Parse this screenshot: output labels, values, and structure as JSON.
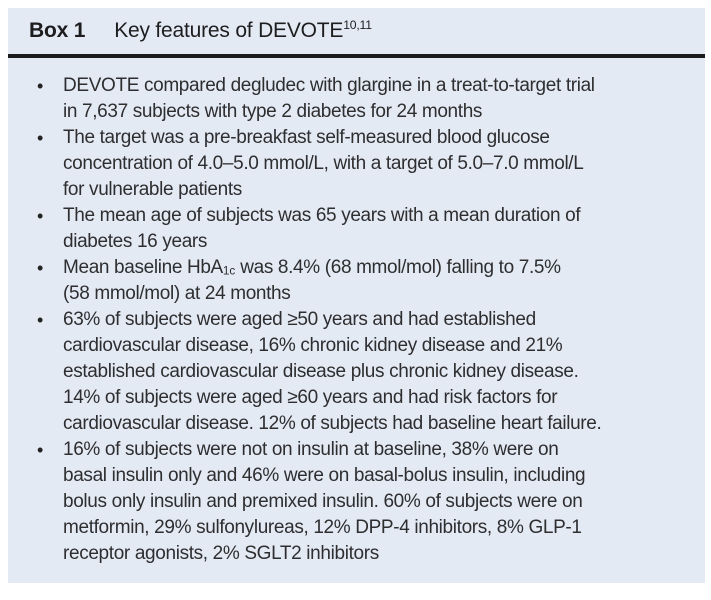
{
  "box": {
    "background": "#e4eaf4",
    "rule_color": "#1b1b1b",
    "bullet_glyph": "•",
    "header": {
      "label": "Box 1",
      "title": "Key features of DEVOTE",
      "reference_superscript": "10,11"
    },
    "bullets": [
      {
        "text": "DEVOTE compared degludec with glargine in a treat-to-target trial\nin 7,637 subjects with type 2 diabetes for 24 months"
      },
      {
        "text": "The target was a pre-breakfast self-measured blood glucose\nconcentration of 4.0–5.0 mmol/L, with a target of 5.0–7.0 mmol/L\nfor vulnerable patients"
      },
      {
        "text": "The mean age of subjects was 65 years with a mean duration of\ndiabetes 16 years"
      },
      {
        "pre": "Mean baseline HbA",
        "sub": "1c",
        "post": " was 8.4% (68 mmol/mol) falling to 7.5%\n(58 mmol/mol) at 24 months"
      },
      {
        "text": "63% of subjects were aged ≥50 years and had established\ncardiovascular disease, 16% chronic kidney disease and 21%\nestablished cardiovascular disease plus chronic kidney disease.\n14% of subjects were aged ≥60 years and had risk factors for\ncardiovascular disease. 12% of subjects had baseline heart failure."
      },
      {
        "text": "16% of subjects were not on insulin at baseline, 38% were on\nbasal insulin only and 46% were on basal-bolus insulin, including\nbolus only insulin and premixed insulin. 60% of subjects were on\nmetformin, 29% sulfonylureas, 12% DPP-4 inhibitors, 8% GLP-1\nreceptor agonists, 2% SGLT2 inhibitors"
      }
    ]
  }
}
